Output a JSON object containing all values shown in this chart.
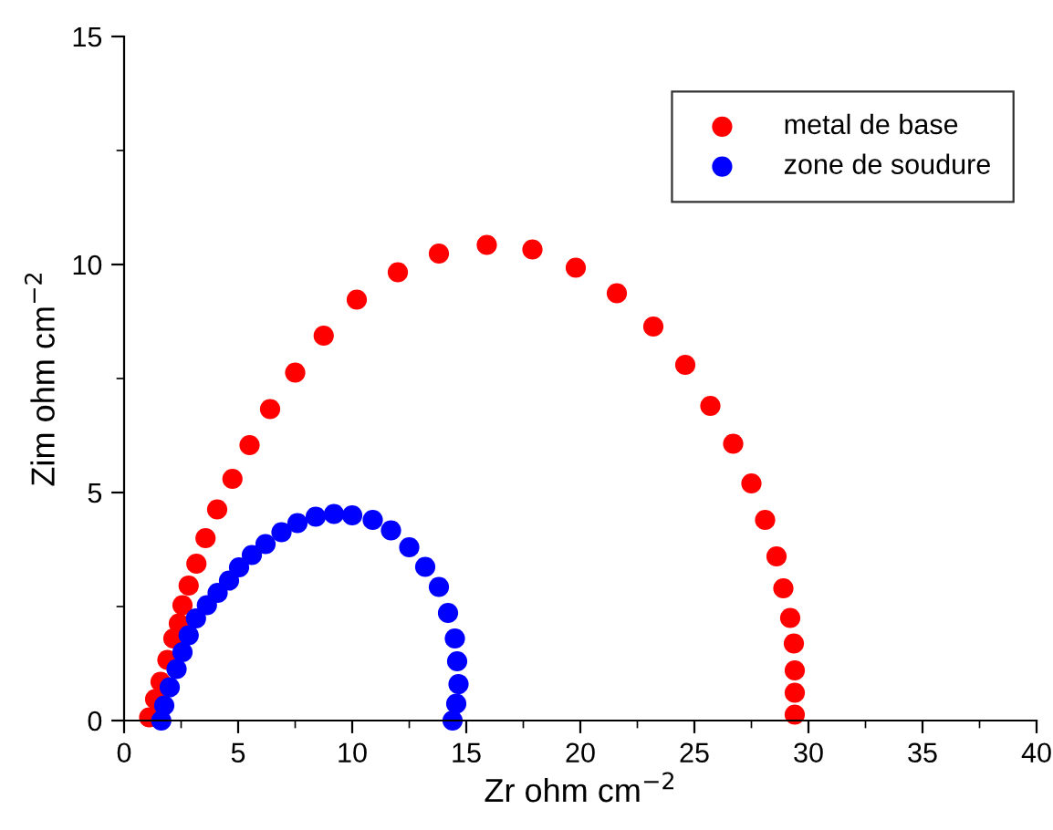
{
  "chart_data": {
    "type": "scatter",
    "xlabel": "Zr ohm cm$^{−2}$",
    "ylabel": "Zim ohm cm$^{−2}$",
    "xlim": [
      0,
      40
    ],
    "ylim": [
      0,
      15
    ],
    "xticks": [
      0,
      5,
      10,
      15,
      20,
      25,
      30,
      35,
      40
    ],
    "yticks": [
      0,
      5,
      10,
      15
    ],
    "marker": "circle",
    "legend": "top right",
    "grid": false,
    "series": [
      {
        "name": "metal de base",
        "color": "#ff0000",
        "x": [
          1.1,
          1.36,
          1.6,
          1.9,
          2.16,
          2.4,
          2.56,
          2.83,
          3.17,
          3.57,
          4.08,
          4.75,
          5.5,
          6.4,
          7.5,
          8.75,
          10.2,
          12.0,
          13.8,
          15.9,
          17.9,
          19.8,
          21.6,
          23.2,
          24.6,
          25.7,
          26.7,
          27.5,
          28.1,
          28.6,
          28.9,
          29.2,
          29.36,
          29.4,
          29.4,
          29.4
        ],
        "values": [
          0.07,
          0.47,
          0.85,
          1.33,
          1.8,
          2.13,
          2.53,
          2.96,
          3.44,
          4.0,
          4.63,
          5.3,
          6.04,
          6.83,
          7.63,
          8.44,
          9.23,
          9.83,
          10.24,
          10.43,
          10.33,
          9.93,
          9.37,
          8.64,
          7.8,
          6.9,
          6.07,
          5.2,
          4.4,
          3.6,
          2.9,
          2.25,
          1.69,
          1.1,
          0.61,
          0.13
        ]
      },
      {
        "name": "zone de soudure",
        "color": "#0000ff",
        "x": [
          1.63,
          1.76,
          2.0,
          2.3,
          2.56,
          2.83,
          3.15,
          3.63,
          4.1,
          4.6,
          5.04,
          5.6,
          6.2,
          6.9,
          7.6,
          8.4,
          9.2,
          10.0,
          10.9,
          11.7,
          12.5,
          13.2,
          13.8,
          14.2,
          14.5,
          14.6,
          14.66,
          14.56,
          14.4
        ],
        "values": [
          0.0,
          0.33,
          0.73,
          1.13,
          1.5,
          1.87,
          2.24,
          2.53,
          2.8,
          3.07,
          3.36,
          3.63,
          3.87,
          4.13,
          4.33,
          4.47,
          4.53,
          4.5,
          4.4,
          4.17,
          3.8,
          3.37,
          2.93,
          2.36,
          1.8,
          1.3,
          0.8,
          0.37,
          0.0
        ]
      }
    ]
  }
}
